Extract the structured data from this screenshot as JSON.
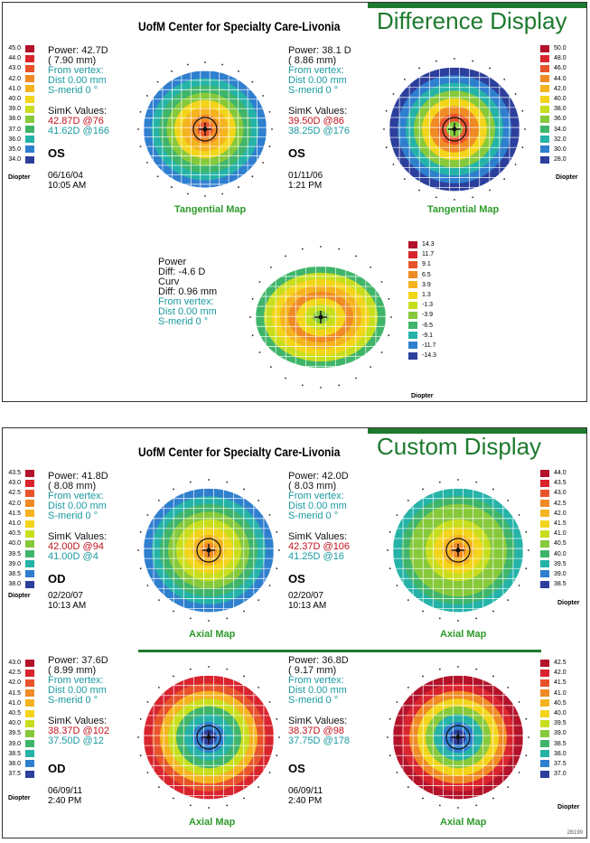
{
  "difference_display": {
    "banner": "Difference Display",
    "header": "UofM Center for Specialty Care-Livonia",
    "left": {
      "power": "Power:  42.7D",
      "radius": "( 7.90 mm)",
      "from_vertex": "From vertex:",
      "dist": "Dist  0.00 mm",
      "smerid": "S-merid       0 °",
      "simk_label": "SimK Values:",
      "simk1": "42.87D @76",
      "simk2": "41.62D @166",
      "eye": "OS",
      "date": "06/16/04",
      "time": "10:05 AM",
      "map_label": "Tangential Map",
      "scale": [
        "45.0",
        "44.0",
        "43.0",
        "42.0",
        "41.0",
        "40.0",
        "39.0",
        "38.0",
        "37.0",
        "36.0",
        "35.0",
        "34.0"
      ],
      "unit": "Diopter"
    },
    "right": {
      "power": "Power:  38.1 D",
      "radius": "( 8.86 mm)",
      "from_vertex": "From vertex:",
      "dist": "Dist  0.00 mm",
      "smerid": "S-merid       0 °",
      "simk_label": "SimK Values:",
      "simk1": "39.50D @86",
      "simk2": "38.25D @176",
      "eye": "OS",
      "date": "01/11/06",
      "time": "1:21 PM",
      "map_label": "Tangential Map",
      "scale": [
        "50.0",
        "48.0",
        "46.0",
        "44.0",
        "42.0",
        "40.0",
        "38.0",
        "36.0",
        "34.0",
        "32.0",
        "30.0",
        "28.0"
      ],
      "unit": "Diopter"
    },
    "diff": {
      "power": "Power",
      "power_diff": "Diff:  -4.6 D",
      "curv": "Curv",
      "curv_diff": "Diff:  0.96 mm",
      "from_vertex": "From vertex:",
      "dist": "Dist  0.00 mm",
      "smerid": "S-merid       0 °",
      "scale": [
        "14.3",
        "11.7",
        "9.1",
        "6.5",
        "3.9",
        "1.3",
        "-1.3",
        "-3.9",
        "-6.5",
        "-9.1",
        "-11.7",
        "-14.3"
      ],
      "unit": "Diopter"
    }
  },
  "custom_display": {
    "banner": "Custom Display",
    "header": "UofM Center for Specialty Care-Livonia",
    "top_left": {
      "power": "Power:  41.8D",
      "radius": "( 8.08 mm)",
      "from_vertex": "From vertex:",
      "dist": "Dist  0.00 mm",
      "smerid": "S-merid       0 °",
      "simk_label": "SimK Values:",
      "simk1": "42.00D @94",
      "simk2": "41.00D @4",
      "eye": "OD",
      "date": "02/20/07",
      "time": "10:13 AM",
      "map_label": "Axial Map",
      "scale": [
        "43.5",
        "43.0",
        "42.5",
        "42.0",
        "41.5",
        "41.0",
        "40.5",
        "40.0",
        "39.5",
        "39.0",
        "38.5",
        "38.0"
      ],
      "unit": "Diopter"
    },
    "top_right": {
      "power": "Power:  42.0D",
      "radius": "( 8.03 mm)",
      "from_vertex": "From vertex:",
      "dist": "Dist  0.00 mm",
      "smerid": "S-merid       0 °",
      "simk_label": "SimK Values:",
      "simk1": "42.37D @106",
      "simk2": "41.25D @16",
      "eye": "OS",
      "date": "02/20/07",
      "time": "10:13 AM",
      "map_label": "Axial Map",
      "scale": [
        "44.0",
        "43.5",
        "43.0",
        "42.5",
        "42.0",
        "41.5",
        "41.0",
        "40.5",
        "40.0",
        "39.5",
        "39.0",
        "38.5"
      ],
      "unit": "Diopter"
    },
    "bottom_left": {
      "power": "Power:  37.6D",
      "radius": "( 8.99 mm)",
      "from_vertex": "From vertex:",
      "dist": "Dist  0.00 mm",
      "smerid": "S-merid       0 °",
      "simk_label": "SimK Values:",
      "simk1": "38.37D @102",
      "simk2": "37.50D @12",
      "eye": "OD",
      "date": "06/09/11",
      "time": "2:40 PM",
      "map_label": "Axial Map",
      "scale": [
        "43.0",
        "42.5",
        "42.0",
        "41.5",
        "41.0",
        "40.5",
        "40.0",
        "39.5",
        "39.0",
        "38.5",
        "38.0",
        "37.5"
      ],
      "unit": "Diopter"
    },
    "bottom_right": {
      "power": "Power:  36.8D",
      "radius": "( 9.17 mm)",
      "from_vertex": "From vertex:",
      "dist": "Dist  0.00 mm",
      "smerid": "S-merid       0 °",
      "simk_label": "SimK Values:",
      "simk1": "38.37D @98",
      "simk2": "37.75D @178",
      "eye": "OS",
      "date": "06/09/11",
      "time": "2:40 PM",
      "map_label": "Axial Map",
      "scale": [
        "42.5",
        "42.0",
        "41.5",
        "41.0",
        "40.5",
        "40.0",
        "39.5",
        "39.0",
        "38.5",
        "38.0",
        "37.5",
        "37.0"
      ],
      "unit": "Diopter"
    },
    "corner_mark": "2B199"
  },
  "colors": {
    "scale": [
      "#b3122a",
      "#d9242e",
      "#e8532a",
      "#f08a24",
      "#f4b31f",
      "#f2d51b",
      "#c8de1d",
      "#86c93a",
      "#3fb56a",
      "#25b3a8",
      "#2f7fcf",
      "#2c3f9c"
    ],
    "accent": "#1e7a2e",
    "teal_text": "#1a9aa0",
    "red_text": "#c0141e"
  }
}
